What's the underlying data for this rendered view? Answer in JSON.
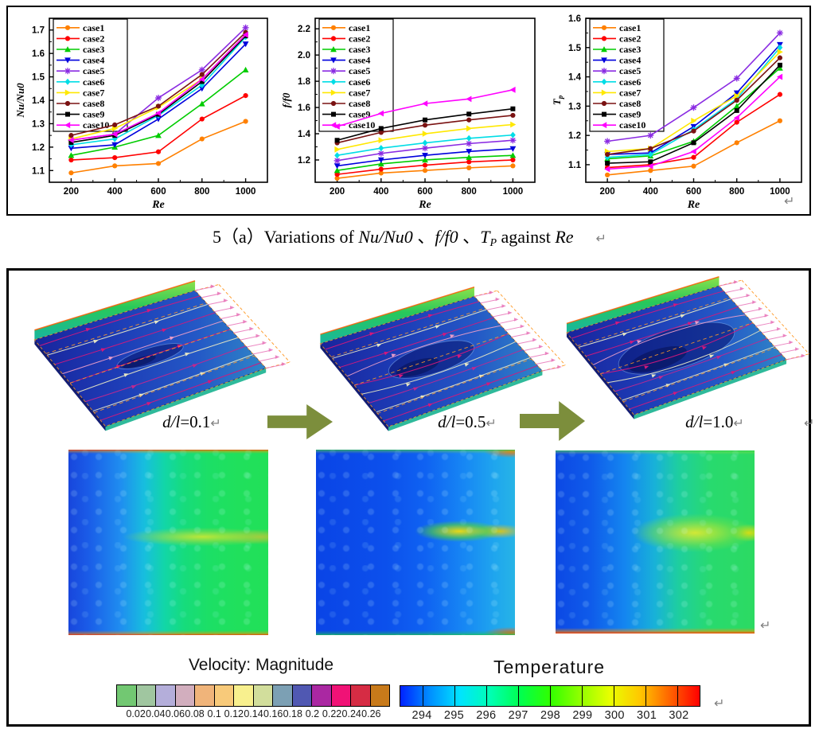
{
  "chart_data": [
    {
      "type": "line",
      "xlabel": "Re",
      "ylabel": "Nu/Nu0",
      "ylabel_sub": "",
      "x": [
        200,
        400,
        600,
        800,
        1000
      ],
      "xlim": [
        100,
        1100
      ],
      "ylim": [
        1.05,
        1.75
      ],
      "xticks": [
        "200",
        "400",
        "600",
        "800",
        "1000"
      ],
      "yticks": [
        "1.1",
        "1.2",
        "1.3",
        "1.4",
        "1.5",
        "1.6",
        "1.7"
      ],
      "legend_position": "top-left",
      "grid": false,
      "series": [
        {
          "name": "case1",
          "color": "#ff8000",
          "marker": "circle",
          "values": [
            1.09,
            1.12,
            1.13,
            1.235,
            1.31
          ]
        },
        {
          "name": "case2",
          "color": "#ff0000",
          "marker": "circle",
          "values": [
            1.145,
            1.155,
            1.18,
            1.32,
            1.42
          ]
        },
        {
          "name": "case3",
          "color": "#00cc00",
          "marker": "triangle-up",
          "values": [
            1.165,
            1.2,
            1.25,
            1.385,
            1.53
          ]
        },
        {
          "name": "case4",
          "color": "#0000dd",
          "marker": "triangle-down",
          "values": [
            1.195,
            1.21,
            1.32,
            1.45,
            1.64
          ]
        },
        {
          "name": "case5",
          "color": "#8a2be2",
          "marker": "star",
          "values": [
            1.23,
            1.255,
            1.41,
            1.53,
            1.71
          ]
        },
        {
          "name": "case6",
          "color": "#00dde6",
          "marker": "diamond",
          "values": [
            1.21,
            1.235,
            1.335,
            1.465,
            1.67
          ]
        },
        {
          "name": "case7",
          "color": "#ffe800",
          "marker": "triangle-right",
          "values": [
            1.235,
            1.28,
            1.37,
            1.49,
            1.68
          ]
        },
        {
          "name": "case8",
          "color": "#7a1212",
          "marker": "circle",
          "values": [
            1.25,
            1.295,
            1.375,
            1.51,
            1.69
          ]
        },
        {
          "name": "case9",
          "color": "#000000",
          "marker": "square",
          "values": [
            1.22,
            1.25,
            1.34,
            1.48,
            1.675
          ]
        },
        {
          "name": "case10",
          "color": "#ff00ff",
          "marker": "triangle-left",
          "values": [
            1.23,
            1.255,
            1.345,
            1.49,
            1.68
          ]
        }
      ]
    },
    {
      "type": "line",
      "xlabel": "Re",
      "ylabel": "f/f0",
      "ylabel_sub": "",
      "x": [
        200,
        400,
        600,
        800,
        1000
      ],
      "xlim": [
        100,
        1100
      ],
      "ylim": [
        1.03,
        2.28
      ],
      "xticks": [
        "200",
        "400",
        "600",
        "800",
        "1000"
      ],
      "yticks": [
        "1.2",
        "1.4",
        "1.6",
        "1.8",
        "2.0",
        "2.2"
      ],
      "legend_position": "top-left",
      "grid": false,
      "series": [
        {
          "name": "case1",
          "color": "#ff8000",
          "marker": "circle",
          "values": [
            1.06,
            1.1,
            1.12,
            1.14,
            1.155
          ]
        },
        {
          "name": "case2",
          "color": "#ff0000",
          "marker": "circle",
          "values": [
            1.09,
            1.13,
            1.16,
            1.185,
            1.2
          ]
        },
        {
          "name": "case3",
          "color": "#00cc00",
          "marker": "triangle-up",
          "values": [
            1.12,
            1.17,
            1.2,
            1.22,
            1.235
          ]
        },
        {
          "name": "case4",
          "color": "#0000dd",
          "marker": "triangle-down",
          "values": [
            1.155,
            1.2,
            1.235,
            1.265,
            1.285
          ]
        },
        {
          "name": "case5",
          "color": "#8a2be2",
          "marker": "star",
          "values": [
            1.195,
            1.25,
            1.29,
            1.325,
            1.35
          ]
        },
        {
          "name": "case6",
          "color": "#00dde6",
          "marker": "diamond",
          "values": [
            1.235,
            1.29,
            1.33,
            1.365,
            1.39
          ]
        },
        {
          "name": "case7",
          "color": "#ffe800",
          "marker": "triangle-right",
          "values": [
            1.28,
            1.35,
            1.4,
            1.44,
            1.47
          ]
        },
        {
          "name": "case8",
          "color": "#7a1212",
          "marker": "circle",
          "values": [
            1.33,
            1.41,
            1.465,
            1.505,
            1.54
          ]
        },
        {
          "name": "case9",
          "color": "#000000",
          "marker": "square",
          "values": [
            1.35,
            1.44,
            1.505,
            1.55,
            1.59
          ]
        },
        {
          "name": "case10",
          "color": "#ff00ff",
          "marker": "triangle-left",
          "values": [
            1.455,
            1.555,
            1.63,
            1.665,
            1.735
          ]
        }
      ]
    },
    {
      "type": "line",
      "xlabel": "Re",
      "ylabel": "T",
      "ylabel_sub": "p",
      "x": [
        200,
        400,
        600,
        800,
        1000
      ],
      "xlim": [
        100,
        1100
      ],
      "ylim": [
        1.04,
        1.6
      ],
      "xticks": [
        "200",
        "400",
        "600",
        "800",
        "1000"
      ],
      "yticks": [
        "1.1",
        "1.2",
        "1.3",
        "1.4",
        "1.5",
        "1.6"
      ],
      "legend_position": "top-left",
      "grid": false,
      "series": [
        {
          "name": "case1",
          "color": "#ff8000",
          "marker": "circle",
          "values": [
            1.065,
            1.08,
            1.095,
            1.175,
            1.25
          ]
        },
        {
          "name": "case2",
          "color": "#ff0000",
          "marker": "circle",
          "values": [
            1.09,
            1.1,
            1.125,
            1.245,
            1.34
          ]
        },
        {
          "name": "case3",
          "color": "#00cc00",
          "marker": "triangle-up",
          "values": [
            1.12,
            1.13,
            1.18,
            1.3,
            1.43
          ]
        },
        {
          "name": "case4",
          "color": "#0000dd",
          "marker": "triangle-down",
          "values": [
            1.135,
            1.14,
            1.23,
            1.345,
            1.51
          ]
        },
        {
          "name": "case5",
          "color": "#8a2be2",
          "marker": "star",
          "values": [
            1.18,
            1.2,
            1.295,
            1.395,
            1.55
          ]
        },
        {
          "name": "case6",
          "color": "#00dde6",
          "marker": "diamond",
          "values": [
            1.125,
            1.135,
            1.22,
            1.325,
            1.5
          ]
        },
        {
          "name": "case7",
          "color": "#ffe800",
          "marker": "triangle-right",
          "values": [
            1.145,
            1.155,
            1.25,
            1.335,
            1.485
          ]
        },
        {
          "name": "case8",
          "color": "#7a1212",
          "marker": "circle",
          "values": [
            1.135,
            1.155,
            1.215,
            1.32,
            1.465
          ]
        },
        {
          "name": "case9",
          "color": "#000000",
          "marker": "square",
          "values": [
            1.105,
            1.11,
            1.175,
            1.285,
            1.44
          ]
        },
        {
          "name": "case10",
          "color": "#ff00ff",
          "marker": "triangle-left",
          "values": [
            1.085,
            1.095,
            1.145,
            1.26,
            1.4
          ]
        }
      ]
    }
  ],
  "caption": {
    "parts": [
      {
        "t": "5（a）Variations of ",
        "style": "roman"
      },
      {
        "t": "Nu/Nu0",
        "style": "italic"
      },
      {
        "t": " 、",
        "style": "roman"
      },
      {
        "t": "f/f0",
        "style": "italic"
      },
      {
        "t": " 、",
        "style": "roman"
      },
      {
        "t": "T",
        "style": "italic"
      },
      {
        "t": "P",
        "style": "italic-sub"
      },
      {
        "t": " against ",
        "style": "roman"
      },
      {
        "t": "Re",
        "style": "italic"
      }
    ],
    "return_mark": "↵"
  },
  "figure_bottom": {
    "panels": [
      {
        "ratio": "d/l",
        "value": "=0.1",
        "return_mark": "↵"
      },
      {
        "ratio": "d/l",
        "value": "=0.5",
        "return_mark": "↵"
      },
      {
        "ratio": "d/l",
        "value": "=1.0",
        "return_mark": "↵"
      }
    ],
    "velocity_bar": {
      "title": "Velocity: Magnitude",
      "colors": [
        "#72c872",
        "#a0c6a0",
        "#b4aeda",
        "#d2aebe",
        "#f0b47a",
        "#f8ca7a",
        "#f8f08e",
        "#d2de9c",
        "#7ca0b4",
        "#5058b2",
        "#aa28a2",
        "#f01276",
        "#d62c44",
        "#c87a1a"
      ],
      "labels": [
        "0.02",
        "0.04",
        "0.06",
        "0.08",
        "0.1",
        "0.12",
        "0.14",
        "0.16",
        "0.18",
        "0.2",
        "0.22",
        "0.24",
        "0.26"
      ]
    },
    "temperature_bar": {
      "title": "Temperature",
      "gradient_colors": [
        "#0022ff",
        "#0090ff",
        "#00e4ff",
        "#00ffb4",
        "#00ff50",
        "#30ff00",
        "#90ff00",
        "#e8ff00",
        "#ffc800",
        "#ff6400",
        "#ff0000"
      ],
      "labels": [
        "294",
        "295",
        "296",
        "297",
        "298",
        "299",
        "300",
        "301",
        "302"
      ]
    },
    "return_marks": {
      "mid_right": "↵",
      "after_contour": "↵",
      "bottom_right": "↵"
    }
  },
  "top_figure": {
    "return_mark": "↵"
  }
}
